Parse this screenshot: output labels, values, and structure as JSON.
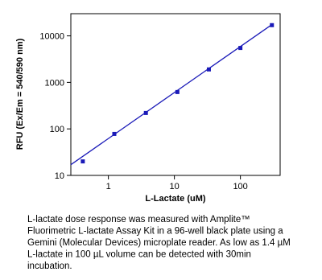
{
  "chart_data": {
    "type": "scatter",
    "x_label": "L-Lactate  (uM)",
    "y_label": "RFU (Ex/Em = 540/590 nm)",
    "log_x": true,
    "log_y": true,
    "color": "#1a1ab8",
    "x": [
      0.41,
      1.23,
      3.7,
      11.1,
      33.3,
      100,
      300
    ],
    "values": [
      20,
      78,
      220,
      620,
      1900,
      5500,
      17000
    ],
    "fit": {
      "x": [
        0.27,
        300
      ],
      "values": [
        17,
        17500
      ]
    },
    "xlim": [
      0.27,
      400
    ],
    "ylim": [
      10,
      30000
    ],
    "xticks": [
      1,
      10,
      100
    ],
    "yticks": [
      10,
      100,
      1000,
      10000
    ]
  },
  "caption": [
    "L-lactate dose response was measured with Amplite™",
    "Fluorimetric L-lactate Assay Kit in a 96-well black plate using  a",
    "Gemini (Molecular Devices) microplate reader. As low as 1.4 µM",
    "L-lactate in 100 µL volume can be detected with 30min",
    "incubation."
  ]
}
